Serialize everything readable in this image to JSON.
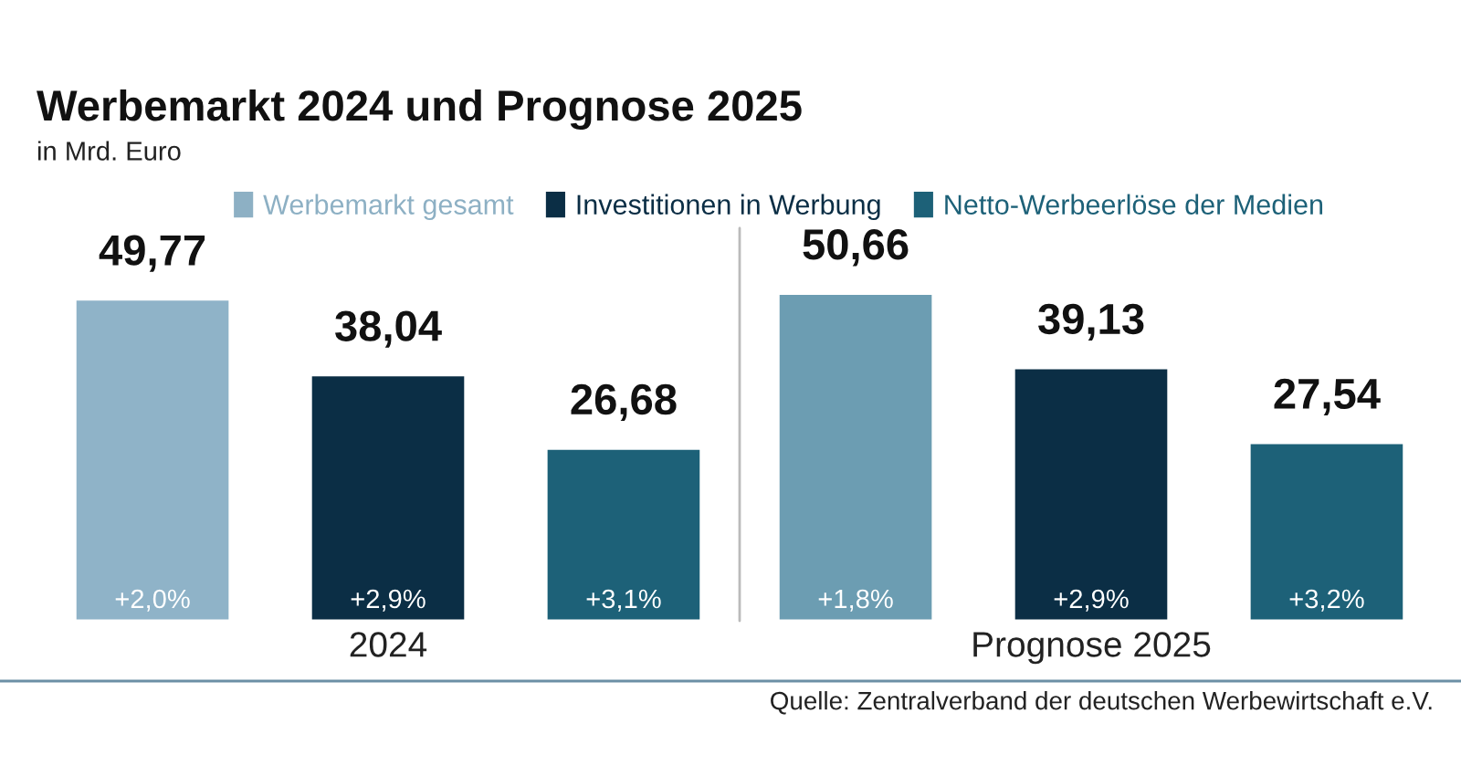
{
  "chart_data": {
    "type": "bar",
    "title": "Werbemarkt 2024 und Prognose 2025",
    "subtitle": "in Mrd. Euro",
    "categories": [
      "2024",
      "Prognose 2025"
    ],
    "series": [
      {
        "name": "Werbemarkt gesamt",
        "color": "#8db0c4",
        "colors": [
          "#8fb3c8",
          "#6c9db2"
        ],
        "values": [
          49.77,
          50.66
        ],
        "value_labels": [
          "49,77",
          "50,66"
        ]
      },
      {
        "name": "Investitionen in Werbung",
        "color": "#0b2e45",
        "values": [
          38.04,
          39.13
        ],
        "value_labels": [
          "38,04",
          "39,13"
        ]
      },
      {
        "name": "Netto-Werbeerlöse der Medien",
        "color": "#1d6178",
        "values": [
          26.68,
          27.54
        ],
        "value_labels": [
          "26,68",
          "27,54"
        ]
      }
    ],
    "legend": "top left",
    "tick_labels": "x",
    "grid": false,
    "annotations": [
      "+2,0%",
      "+2,9%",
      "+3,1%",
      "+1,8%",
      "+2,9%",
      "+3,2%",
      "Quelle: Zentralverband der deutschen Werbewirtschaft e.V."
    ]
  }
}
